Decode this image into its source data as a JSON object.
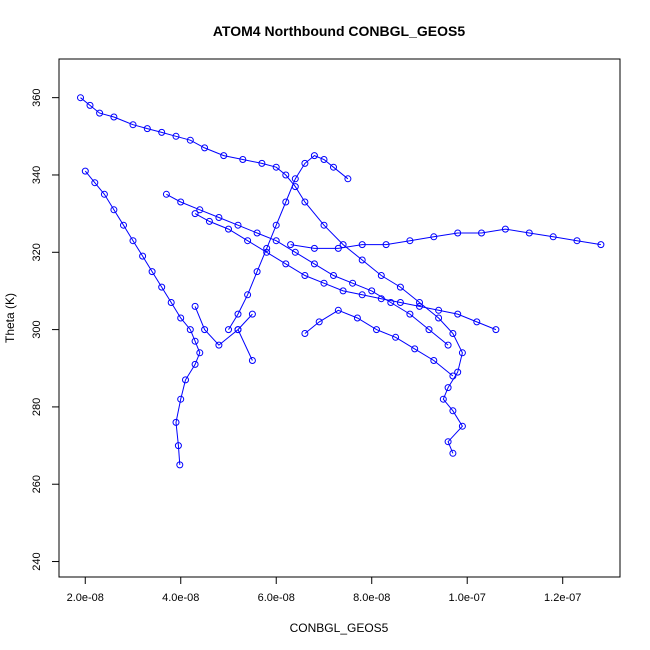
{
  "chart_data": {
    "type": "line",
    "title": "ATOM4 Northbound CONBGL_GEOS5",
    "xlabel": "CONBGL_GEOS5",
    "ylabel": "Theta (K)",
    "xlim": [
      1.45e-08,
      1.32e-07
    ],
    "ylim": [
      236,
      370
    ],
    "x_ticks": [
      {
        "value": 2e-08,
        "label": "2.0e-08"
      },
      {
        "value": 4e-08,
        "label": "4.0e-08"
      },
      {
        "value": 6e-08,
        "label": "6.0e-08"
      },
      {
        "value": 8e-08,
        "label": "8.0e-08"
      },
      {
        "value": 1e-07,
        "label": "1.0e-07"
      },
      {
        "value": 1.2e-07,
        "label": "1.2e-07"
      }
    ],
    "y_ticks": [
      {
        "value": 240,
        "label": "240"
      },
      {
        "value": 260,
        "label": "260"
      },
      {
        "value": 280,
        "label": "280"
      },
      {
        "value": 300,
        "label": "300"
      },
      {
        "value": 320,
        "label": "320"
      },
      {
        "value": 340,
        "label": "340"
      },
      {
        "value": 360,
        "label": "360"
      }
    ],
    "grid": false,
    "legend": "none",
    "series_color": "#0000ff",
    "series": [
      {
        "markers": "open-circle",
        "x": [
          1.9e-08,
          2.1e-08,
          2.3e-08,
          2.6e-08,
          3e-08,
          3.3e-08,
          3.6e-08,
          3.9e-08,
          4.2e-08,
          4.5e-08,
          4.9e-08,
          5.3e-08,
          5.7e-08,
          6e-08,
          6.2e-08,
          6.4e-08,
          6.6e-08,
          7e-08,
          7.4e-08,
          7.8e-08,
          8.2e-08,
          8.6e-08,
          9e-08,
          9.4e-08,
          9.7e-08,
          9.9e-08,
          9.8e-08,
          9.6e-08,
          9.5e-08,
          9.7e-08,
          9.9e-08,
          9.6e-08,
          9.7e-08
        ],
        "y": [
          360,
          358,
          356,
          355,
          353,
          352,
          351,
          350,
          349,
          347,
          345,
          344,
          343,
          342,
          340,
          337,
          333,
          327,
          322,
          318,
          314,
          311,
          307,
          303,
          299,
          294,
          289,
          285,
          282,
          279,
          275,
          271,
          268
        ]
      },
      {
        "markers": "open-circle",
        "x": [
          2e-08,
          2.2e-08,
          2.4e-08,
          2.6e-08,
          2.8e-08,
          3e-08,
          3.2e-08,
          3.4e-08,
          3.6e-08,
          3.8e-08,
          4e-08,
          4.2e-08,
          4.3e-08,
          4.4e-08,
          4.3e-08,
          4.1e-08,
          4e-08,
          3.9e-08,
          3.95e-08,
          3.98e-08
        ],
        "y": [
          341,
          338,
          335,
          331,
          327,
          323,
          319,
          315,
          311,
          307,
          303,
          300,
          297,
          294,
          291,
          287,
          282,
          276,
          270,
          265
        ]
      },
      {
        "markers": "open-circle",
        "x": [
          5e-08,
          5.2e-08,
          5.4e-08,
          5.6e-08,
          5.8e-08,
          6e-08,
          6.2e-08,
          6.4e-08,
          6.6e-08,
          6.8e-08,
          7e-08,
          7.2e-08,
          7.5e-08
        ],
        "y": [
          300,
          304,
          309,
          315,
          321,
          327,
          333,
          339,
          343,
          345,
          344,
          342,
          339
        ]
      },
      {
        "markers": "open-circle",
        "x": [
          6.3e-08,
          6.8e-08,
          7.3e-08,
          7.8e-08,
          8.3e-08,
          8.8e-08,
          9.3e-08,
          9.8e-08,
          1.03e-07,
          1.08e-07,
          1.13e-07,
          1.18e-07,
          1.23e-07,
          1.28e-07
        ],
        "y": [
          322,
          321,
          321,
          322,
          322,
          323,
          324,
          325,
          325,
          326,
          325,
          324,
          323,
          322
        ]
      },
      {
        "markers": "open-circle",
        "x": [
          4.3e-08,
          4.6e-08,
          5e-08,
          5.4e-08,
          5.8e-08,
          6.2e-08,
          6.6e-08,
          7e-08,
          7.4e-08,
          7.8e-08,
          8.2e-08,
          8.6e-08,
          9e-08,
          9.4e-08,
          9.8e-08,
          1.02e-07,
          1.06e-07
        ],
        "y": [
          330,
          328,
          326,
          323,
          320,
          317,
          314,
          312,
          310,
          309,
          308,
          307,
          306,
          305,
          304,
          302,
          300
        ]
      },
      {
        "markers": "open-circle",
        "x": [
          3.7e-08,
          4e-08,
          4.4e-08,
          4.8e-08,
          5.2e-08,
          5.6e-08,
          6e-08,
          6.4e-08,
          6.8e-08,
          7.2e-08,
          7.6e-08,
          8e-08,
          8.4e-08,
          8.8e-08,
          9.2e-08,
          9.6e-08
        ],
        "y": [
          335,
          333,
          331,
          329,
          327,
          325,
          323,
          320,
          317,
          314,
          312,
          310,
          307,
          304,
          300,
          296
        ]
      },
      {
        "markers": "open-circle",
        "x": [
          4.3e-08,
          4.5e-08,
          4.8e-08,
          5.2e-08,
          5.5e-08,
          5.2e-08,
          5.5e-08
        ],
        "y": [
          306,
          300,
          296,
          300,
          304,
          300,
          292
        ]
      },
      {
        "markers": "open-circle",
        "x": [
          6.6e-08,
          6.9e-08,
          7.3e-08,
          7.7e-08,
          8.1e-08,
          8.5e-08,
          8.9e-08,
          9.3e-08,
          9.7e-08
        ],
        "y": [
          299,
          302,
          305,
          303,
          300,
          298,
          295,
          292,
          288
        ]
      }
    ]
  }
}
